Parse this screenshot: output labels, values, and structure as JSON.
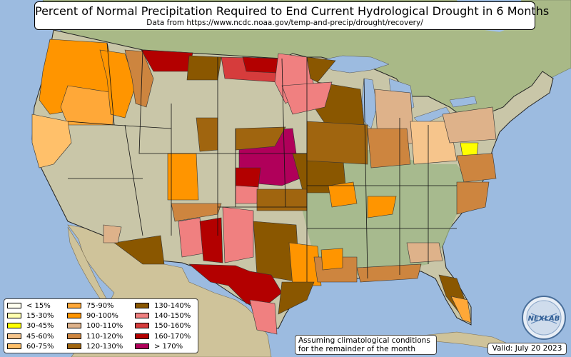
{
  "title": "Percent of Normal Precipitation Required to End Current Hydrological Drought in 6 Months",
  "subtitle": "Data from https://www.ncdc.noaa.gov/temp-and-precip/drought/recovery/",
  "legend": [
    {
      "label": "< 15%",
      "color": "#fffff0"
    },
    {
      "label": "15-30%",
      "color": "#ffffb0"
    },
    {
      "label": "30-45%",
      "color": "#ffff00"
    },
    {
      "label": "45-60%",
      "color": "#f6c58c"
    },
    {
      "label": "60-75%",
      "color": "#ffc06a"
    },
    {
      "label": "75-90%",
      "color": "#ffa838"
    },
    {
      "label": "90-100%",
      "color": "#ff9500"
    },
    {
      "label": "100-110%",
      "color": "#deb28a"
    },
    {
      "label": "110-120%",
      "color": "#cd853f"
    },
    {
      "label": "120-130%",
      "color": "#a0650f"
    },
    {
      "label": "130-140%",
      "color": "#8a5700"
    },
    {
      "label": "140-150%",
      "color": "#f08080"
    },
    {
      "label": "150-160%",
      "color": "#d63c3c"
    },
    {
      "label": "160-170%",
      "color": "#b30000"
    },
    {
      "label": "> 170%",
      "color": "#b0005a"
    }
  ],
  "note": {
    "line1": "Assuming climatological conditions",
    "line2": "for the remainder of the month"
  },
  "valid": "Valid: July 20 2023",
  "logo_text": "NEXLAB"
}
